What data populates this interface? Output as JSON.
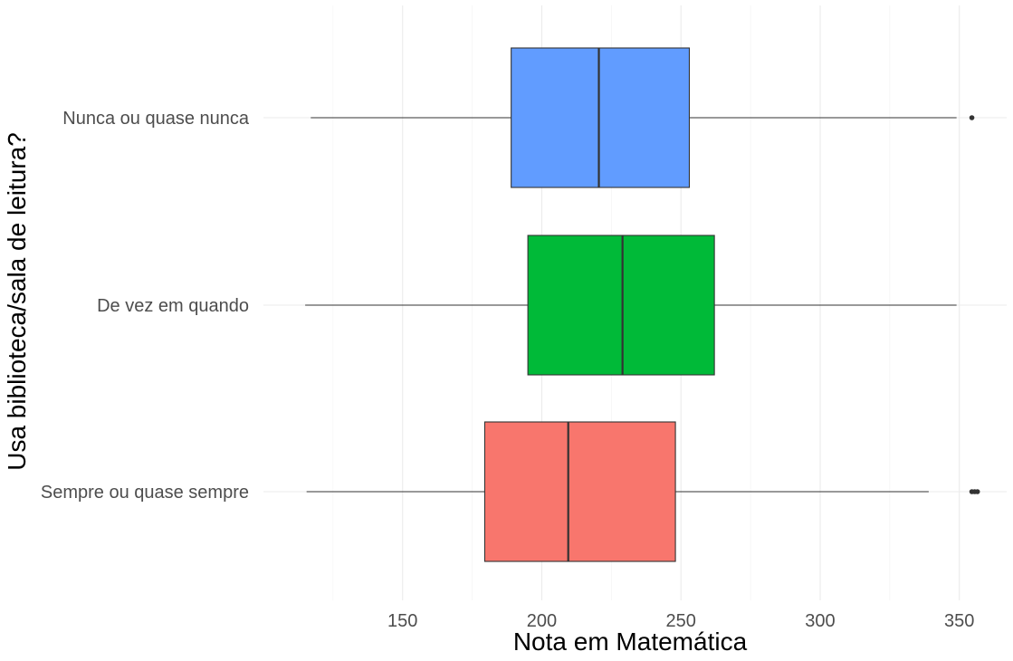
{
  "chart_data": {
    "type": "boxplot",
    "orientation": "horizontal",
    "title": "",
    "xlabel": "Nota em Matemática",
    "ylabel": "Usa biblioteca/sala de leitura?",
    "xlim": [
      100,
      367
    ],
    "x_ticks": [
      150,
      200,
      250,
      300,
      350
    ],
    "x_tick_labels": [
      "150",
      "200",
      "250",
      "300",
      "350"
    ],
    "x_minor_ticks": [
      125,
      175,
      225,
      275,
      325
    ],
    "grid": true,
    "legend": "none",
    "categories": [
      "Nunca ou quase nunca",
      "De vez em quando",
      "Sempre ou quase sempre"
    ],
    "boxes": [
      {
        "category": "Nunca ou quase nunca",
        "whisker_low": 117,
        "q1": 189,
        "median": 220.5,
        "q3": 253,
        "whisker_high": 349,
        "outliers": [
          354.5
        ],
        "color": "#619CFF"
      },
      {
        "category": "De vez em quando",
        "whisker_low": 115,
        "q1": 195,
        "median": 229,
        "q3": 262,
        "whisker_high": 349,
        "outliers": [],
        "color": "#00BA38"
      },
      {
        "category": "Sempre ou quase sempre",
        "whisker_low": 115.5,
        "q1": 179.5,
        "median": 209.5,
        "q3": 248,
        "whisker_high": 339,
        "outliers": [
          354.5,
          355.5,
          356.5
        ],
        "color": "#F8766D"
      }
    ]
  }
}
